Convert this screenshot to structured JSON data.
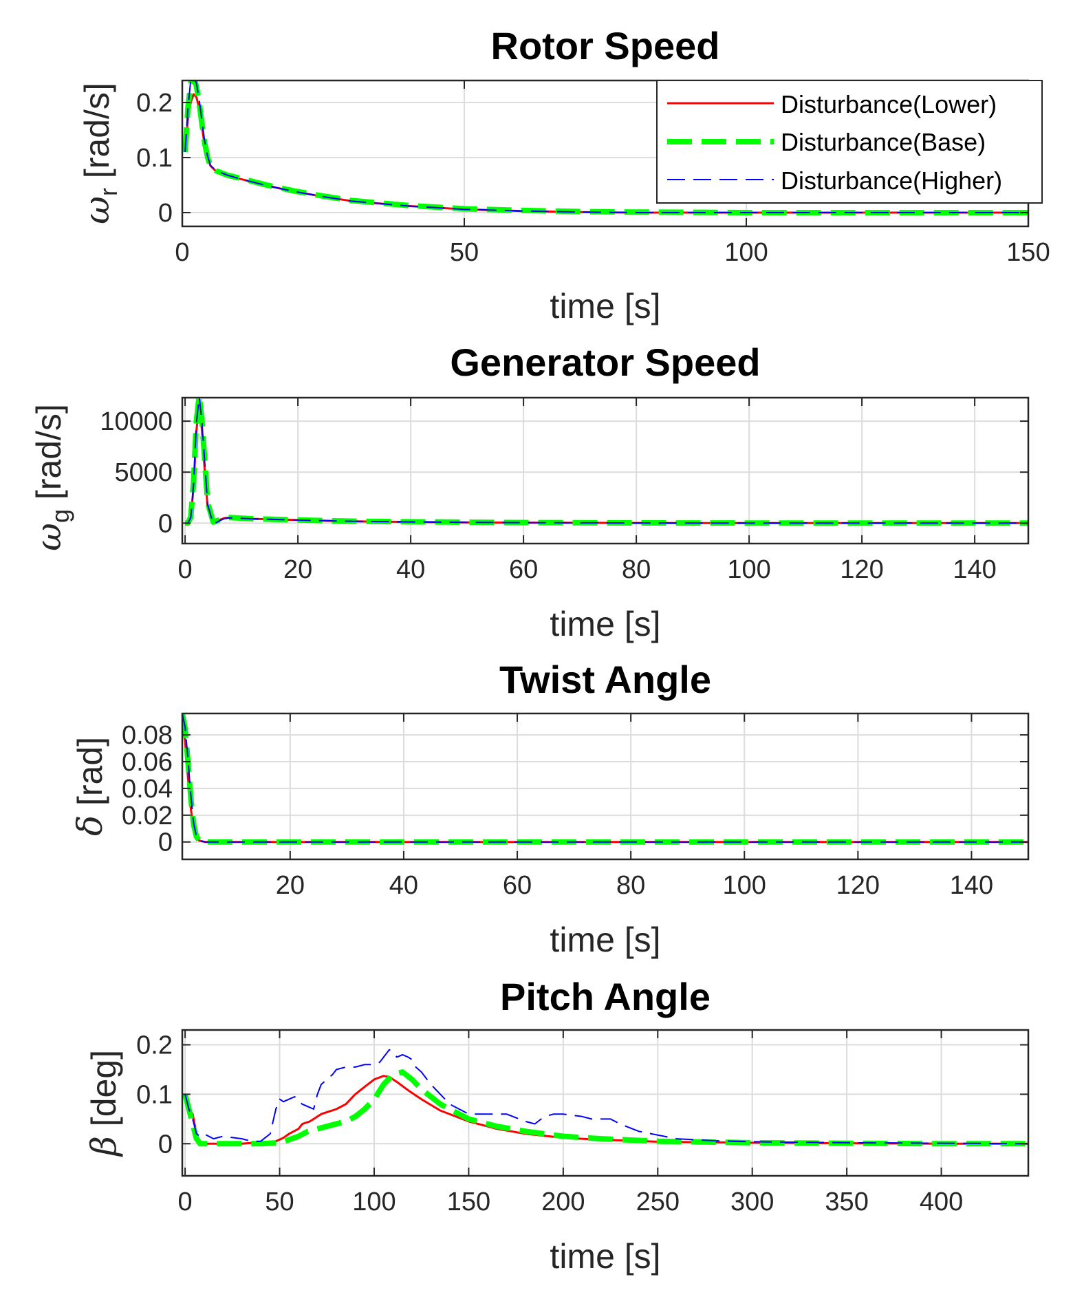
{
  "figure": {
    "background": "#ffffff",
    "grid_color": "#dcdcdc",
    "axis_color": "#262626"
  },
  "legend": {
    "placement": "top-right",
    "entries": [
      {
        "label": "Disturbance(Lower)",
        "color": "#ff0000",
        "style": "solid"
      },
      {
        "label": "Disturbance(Base)",
        "color": "#00ff00",
        "style": "thick-dashed"
      },
      {
        "label": "Disturbance(Higher)",
        "color": "#0000ff",
        "style": "dashed"
      }
    ]
  },
  "chart_data": [
    {
      "type": "line",
      "title": "Rotor Speed",
      "xlabel": "time [s]",
      "ylabel_symbol": "ω",
      "ylabel_sub": "r",
      "ylabel_unit": " [rad/s]",
      "xlim": [
        0,
        150
      ],
      "ylim": [
        -0.025,
        0.24
      ],
      "xticks": [
        0,
        50,
        100,
        150
      ],
      "xtick_labels": [
        "0",
        "50",
        "100",
        "150"
      ],
      "yticks": [
        0,
        0.1,
        0.2
      ],
      "ytick_labels": [
        "0",
        "0.1",
        "0.2"
      ],
      "grid": true,
      "legend": true,
      "series": [
        {
          "name": "Disturbance(Lower)",
          "x": [
            0.5,
            1,
            1.5,
            2,
            2.5,
            3,
            3.5,
            4,
            4.5,
            5,
            6,
            8,
            10,
            15,
            20,
            25,
            30,
            40,
            50,
            60,
            70,
            80,
            100,
            120,
            150
          ],
          "y": [
            0.11,
            0.17,
            0.2,
            0.215,
            0.21,
            0.19,
            0.155,
            0.12,
            0.1,
            0.085,
            0.075,
            0.067,
            0.062,
            0.049,
            0.038,
            0.029,
            0.021,
            0.012,
            0.006,
            0.003,
            0.001,
            0,
            0,
            0,
            0
          ]
        },
        {
          "name": "Disturbance(Base)",
          "x": [
            0.5,
            1,
            1.5,
            2,
            2.5,
            3,
            3.5,
            4,
            4.5,
            5,
            6,
            8,
            10,
            15,
            20,
            25,
            30,
            40,
            50,
            60,
            70,
            80,
            100,
            120,
            150
          ],
          "y": [
            0.11,
            0.19,
            0.235,
            0.245,
            0.23,
            0.2,
            0.16,
            0.125,
            0.1,
            0.085,
            0.076,
            0.068,
            0.063,
            0.05,
            0.039,
            0.03,
            0.022,
            0.013,
            0.007,
            0.004,
            0.002,
            0.001,
            0,
            0,
            0
          ]
        },
        {
          "name": "Disturbance(Higher)",
          "x": [
            0.5,
            1,
            1.5,
            2,
            2.5,
            3,
            3.5,
            4,
            4.5,
            5,
            6,
            8,
            10,
            15,
            20,
            25,
            30,
            40,
            50,
            60,
            70,
            80,
            100,
            120,
            150
          ],
          "y": [
            0.11,
            0.19,
            0.24,
            0.25,
            0.235,
            0.205,
            0.165,
            0.128,
            0.102,
            0.086,
            0.076,
            0.068,
            0.062,
            0.049,
            0.038,
            0.029,
            0.021,
            0.012,
            0.006,
            0.003,
            0.001,
            0,
            0,
            0,
            0
          ]
        }
      ]
    },
    {
      "type": "line",
      "title": "Generator Speed",
      "xlabel": "time [s]",
      "ylabel_symbol": "ω",
      "ylabel_sub": "g",
      "ylabel_unit": " [rad/s]",
      "xlim": [
        -0.5,
        149.5
      ],
      "ylim": [
        -2000,
        12300
      ],
      "xticks": [
        0,
        20,
        40,
        60,
        80,
        100,
        120,
        140
      ],
      "xtick_labels": [
        "0",
        "20",
        "40",
        "60",
        "80",
        "100",
        "120",
        "140"
      ],
      "yticks": [
        0,
        5000,
        10000
      ],
      "ytick_labels": [
        "0",
        "5000",
        "10000"
      ],
      "grid": true,
      "legend": false,
      "series": [
        {
          "name": "Disturbance(Lower)",
          "x": [
            0,
            0.5,
            1,
            1.5,
            2,
            2.5,
            3,
            3.5,
            4,
            5,
            6,
            7,
            8,
            10,
            12,
            15,
            20,
            25,
            30,
            40,
            50,
            60,
            80,
            100,
            120,
            149.5
          ],
          "y": [
            0,
            0,
            500,
            3500,
            9000,
            11800,
            9000,
            5000,
            1500,
            0,
            300,
            500,
            550,
            480,
            420,
            380,
            300,
            230,
            180,
            120,
            80,
            50,
            20,
            5,
            0,
            0
          ]
        },
        {
          "name": "Disturbance(Base)",
          "x": [
            0,
            0.5,
            1,
            1.5,
            2,
            2.5,
            3,
            3.5,
            4,
            5,
            6,
            7,
            8,
            10,
            12,
            15,
            20,
            25,
            30,
            40,
            50,
            60,
            80,
            100,
            120,
            149.5
          ],
          "y": [
            0,
            0,
            600,
            4000,
            10000,
            12500,
            10000,
            6000,
            2000,
            100,
            300,
            500,
            550,
            490,
            430,
            390,
            310,
            240,
            190,
            130,
            90,
            55,
            25,
            8,
            0,
            0
          ]
        },
        {
          "name": "Disturbance(Higher)",
          "x": [
            0,
            0.5,
            1,
            1.5,
            2,
            2.5,
            3,
            3.5,
            4,
            5,
            6,
            7,
            8,
            10,
            12,
            15,
            20,
            25,
            30,
            40,
            50,
            60,
            80,
            100,
            120,
            149.5
          ],
          "y": [
            0,
            0,
            550,
            3800,
            9800,
            12400,
            9800,
            5800,
            1800,
            -100,
            200,
            450,
            520,
            470,
            420,
            380,
            300,
            230,
            180,
            120,
            80,
            50,
            20,
            5,
            0,
            0
          ]
        }
      ]
    },
    {
      "type": "line",
      "title": "Twist Angle",
      "xlabel": "time [s]",
      "ylabel_symbol": "δ",
      "ylabel_sub": "",
      "ylabel_unit": " [rad]",
      "xlim": [
        1,
        150
      ],
      "ylim": [
        -0.013,
        0.096
      ],
      "xticks": [
        20,
        40,
        60,
        80,
        100,
        120,
        140
      ],
      "xtick_labels": [
        "20",
        "40",
        "60",
        "80",
        "100",
        "120",
        "140"
      ],
      "yticks": [
        0,
        0.02,
        0.04,
        0.06,
        0.08
      ],
      "ytick_labels": [
        "0",
        "0.02",
        "0.04",
        "0.06",
        "0.08"
      ],
      "grid": true,
      "legend": false,
      "series": [
        {
          "name": "Disturbance(Lower)",
          "x": [
            1,
            1.5,
            2,
            2.5,
            3,
            3.5,
            4,
            5,
            6,
            8,
            10,
            150
          ],
          "y": [
            0.095,
            0.075,
            0.048,
            0.025,
            0.01,
            0.003,
            0.001,
            0,
            0,
            0,
            0,
            0
          ]
        },
        {
          "name": "Disturbance(Base)",
          "x": [
            1,
            1.5,
            2,
            2.5,
            3,
            3.5,
            4,
            5,
            6,
            8,
            10,
            150
          ],
          "y": [
            0.096,
            0.085,
            0.06,
            0.033,
            0.013,
            0.004,
            0.001,
            0,
            0,
            0,
            0,
            0
          ]
        },
        {
          "name": "Disturbance(Higher)",
          "x": [
            1,
            1.5,
            2,
            2.5,
            3,
            3.5,
            4,
            5,
            6,
            8,
            10,
            150
          ],
          "y": [
            0.096,
            0.086,
            0.062,
            0.035,
            0.014,
            0.004,
            0.001,
            0,
            0,
            0,
            0,
            0
          ]
        }
      ]
    },
    {
      "type": "line",
      "title": "Pitch Angle",
      "xlabel": "time [s]",
      "ylabel_symbol": "β",
      "ylabel_sub": "",
      "ylabel_unit": " [deg]",
      "xlim": [
        -1.5,
        446
      ],
      "ylim": [
        -0.065,
        0.23
      ],
      "xticks": [
        0,
        50,
        100,
        150,
        200,
        250,
        300,
        350,
        400
      ],
      "xtick_labels": [
        "0",
        "50",
        "100",
        "150",
        "200",
        "250",
        "300",
        "350",
        "400"
      ],
      "yticks": [
        0,
        0.1,
        0.2
      ],
      "ytick_labels": [
        "0",
        "0.1",
        "0.2"
      ],
      "grid": true,
      "legend": false,
      "series": [
        {
          "name": "Disturbance(Lower)",
          "x": [
            0,
            2,
            4,
            6,
            8,
            10,
            15,
            20,
            30,
            40,
            48,
            52,
            55,
            60,
            62,
            66,
            68,
            70,
            72,
            76,
            80,
            85,
            90,
            95,
            100,
            105,
            108,
            112,
            118,
            125,
            135,
            150,
            165,
            180,
            200,
            220,
            250,
            300,
            350,
            400,
            446
          ],
          "y": [
            0.1,
            0.07,
            0.06,
            0.02,
            0.002,
            0,
            0,
            0,
            0,
            0.003,
            0.005,
            0.012,
            0.02,
            0.03,
            0.04,
            0.045,
            0.05,
            0.055,
            0.06,
            0.065,
            0.07,
            0.08,
            0.1,
            0.115,
            0.13,
            0.137,
            0.135,
            0.125,
            0.108,
            0.09,
            0.067,
            0.045,
            0.03,
            0.02,
            0.012,
            0.008,
            0.004,
            0.002,
            0.001,
            0,
            0
          ]
        },
        {
          "name": "Disturbance(Base)",
          "x": [
            0,
            2,
            4,
            6,
            8,
            10,
            15,
            20,
            30,
            40,
            50,
            55,
            60,
            65,
            70,
            75,
            80,
            85,
            90,
            95,
            100,
            105,
            110,
            115,
            120,
            125,
            135,
            150,
            165,
            180,
            200,
            220,
            250,
            300,
            350,
            400,
            446
          ],
          "y": [
            0.1,
            0.07,
            0.04,
            0.01,
            0,
            0,
            0,
            0,
            0,
            0,
            0.002,
            0.008,
            0.015,
            0.025,
            0.03,
            0.035,
            0.04,
            0.045,
            0.055,
            0.07,
            0.09,
            0.12,
            0.14,
            0.145,
            0.13,
            0.11,
            0.08,
            0.05,
            0.035,
            0.025,
            0.015,
            0.01,
            0.005,
            0.002,
            0.001,
            0,
            0
          ]
        },
        {
          "name": "Disturbance(Higher)",
          "x": [
            0,
            2,
            4,
            6,
            8,
            10,
            15,
            20,
            30,
            35,
            40,
            45,
            48,
            50,
            52,
            55,
            58,
            60,
            62,
            65,
            68,
            70,
            72,
            75,
            78,
            80,
            85,
            90,
            95,
            100,
            103,
            105,
            108,
            110,
            112,
            115,
            118,
            120,
            122,
            125,
            130,
            140,
            150,
            160,
            170,
            180,
            185,
            190,
            195,
            200,
            210,
            215,
            220,
            225,
            230,
            240,
            260,
            280,
            300,
            350,
            400,
            446
          ],
          "y": [
            0.1,
            0.07,
            0.05,
            0.02,
            0.015,
            0.02,
            0.01,
            0.015,
            0.01,
            0.005,
            0.005,
            0.02,
            0.07,
            0.09,
            0.085,
            0.09,
            0.095,
            0.085,
            0.08,
            0.075,
            0.07,
            0.1,
            0.12,
            0.13,
            0.14,
            0.15,
            0.155,
            0.155,
            0.16,
            0.16,
            0.165,
            0.175,
            0.19,
            0.185,
            0.175,
            0.18,
            0.175,
            0.17,
            0.155,
            0.145,
            0.12,
            0.08,
            0.06,
            0.06,
            0.06,
            0.045,
            0.04,
            0.055,
            0.06,
            0.06,
            0.055,
            0.05,
            0.05,
            0.05,
            0.04,
            0.025,
            0.01,
            0.006,
            0.004,
            0.002,
            0.001,
            0
          ]
        }
      ]
    }
  ]
}
